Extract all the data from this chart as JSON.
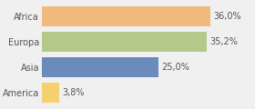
{
  "categories": [
    "Africa",
    "Europa",
    "Asia",
    "America"
  ],
  "values": [
    36.0,
    35.2,
    25.0,
    3.8
  ],
  "labels": [
    "36,0%",
    "35,2%",
    "25,0%",
    "3,8%"
  ],
  "bar_colors": [
    "#f0b97d",
    "#b5c98a",
    "#6b8cba",
    "#f5d06e"
  ],
  "background_color": "#f0f0f0",
  "xlim": [
    0,
    45
  ],
  "bar_height": 0.78,
  "label_fontsize": 7.0,
  "tick_fontsize": 7.0,
  "label_color": "#555555",
  "tick_color": "#555555"
}
